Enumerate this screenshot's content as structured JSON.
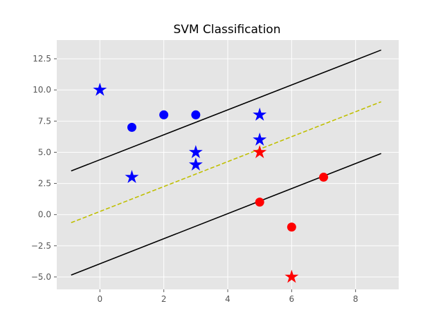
{
  "chart_data": {
    "type": "scatter",
    "title": "SVM Classification",
    "xlabel": "",
    "ylabel": "",
    "xlim": [
      -1.35,
      9.35
    ],
    "ylim": [
      -6.0,
      14.0
    ],
    "grid": true,
    "background_color": "#e5e5e5",
    "grid_color": "#ffffff",
    "x_ticks": [
      0,
      2,
      4,
      6,
      8
    ],
    "x_tick_labels": [
      "0",
      "2",
      "4",
      "6",
      "8"
    ],
    "y_ticks": [
      -5.0,
      -2.5,
      0.0,
      2.5,
      5.0,
      7.5,
      10.0,
      12.5
    ],
    "y_tick_labels": [
      "−5.0",
      "−2.5",
      "0.0",
      "2.5",
      "5.0",
      "7.5",
      "10.0",
      "12.5"
    ],
    "series": [
      {
        "marker": "star",
        "color": "#0000ff",
        "points": [
          [
            0,
            10
          ],
          [
            1,
            3
          ],
          [
            3,
            5
          ],
          [
            3,
            4
          ],
          [
            5,
            8
          ],
          [
            5,
            6
          ]
        ]
      },
      {
        "marker": "circle",
        "color": "#0000ff",
        "points": [
          [
            1,
            7
          ],
          [
            2,
            8
          ],
          [
            3,
            8
          ]
        ]
      },
      {
        "marker": "circle",
        "color": "#ff0000",
        "points": [
          [
            5,
            1
          ],
          [
            6,
            -1
          ],
          [
            7,
            3
          ]
        ]
      },
      {
        "marker": "star",
        "color": "#ff0000",
        "points": [
          [
            5,
            5
          ],
          [
            6,
            -5
          ]
        ]
      }
    ],
    "lines": [
      {
        "role": "margin-upper",
        "style": "solid",
        "color": "#000000",
        "x": [
          -0.9,
          8.8
        ],
        "y": [
          3.5,
          13.2
        ]
      },
      {
        "role": "decision-boundary",
        "style": "dashed",
        "color": "#bfbf00",
        "x": [
          -0.9,
          8.8
        ],
        "y": [
          -0.65,
          9.05
        ]
      },
      {
        "role": "margin-lower",
        "style": "solid",
        "color": "#000000",
        "x": [
          -0.9,
          8.8
        ],
        "y": [
          -4.85,
          4.9
        ]
      }
    ]
  }
}
